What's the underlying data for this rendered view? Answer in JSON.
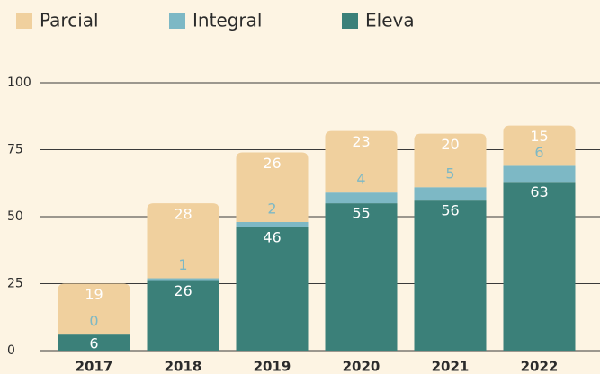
{
  "chart_data": {
    "type": "stacked_bar",
    "categories": [
      "2017",
      "2018",
      "2019",
      "2020",
      "2021",
      "2022"
    ],
    "series": [
      {
        "name": "Eleva",
        "color": "#3b8079",
        "values": [
          6,
          26,
          46,
          55,
          56,
          63
        ]
      },
      {
        "name": "Integral",
        "color": "#7db8c5",
        "values": [
          0,
          1,
          2,
          4,
          5,
          6
        ]
      },
      {
        "name": "Parcial",
        "color": "#f0d09e",
        "values": [
          19,
          28,
          26,
          23,
          20,
          15
        ]
      }
    ],
    "legend_order": [
      "Parcial",
      "Integral",
      "Eleva"
    ],
    "ylim": [
      0,
      100
    ],
    "yticks": [
      0,
      25,
      50,
      75,
      100
    ],
    "grid": true,
    "legend": "top"
  }
}
